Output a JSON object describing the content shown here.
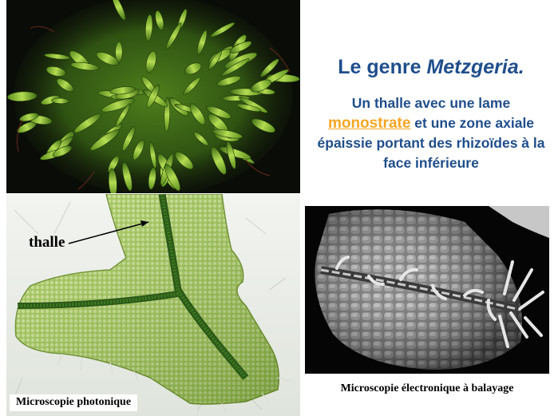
{
  "slide": {
    "title_prefix": "Le genre ",
    "title_genus": "Metzgeria.",
    "desc_part1": "Un thalle avec une lame",
    "desc_highlight": "monostrate",
    "desc_part2": " et une zone axiale épaissie portant des rhizoïdes à la face inférieure"
  },
  "figures": {
    "thalle_label": "thalle",
    "caption_photonique": "Microscopie photonique",
    "caption_balayage": "Microscopie électronique à balayage"
  },
  "colors": {
    "title": "#1f4e8c",
    "highlight": "#f5a623",
    "moss_green": "#7fb83a"
  }
}
